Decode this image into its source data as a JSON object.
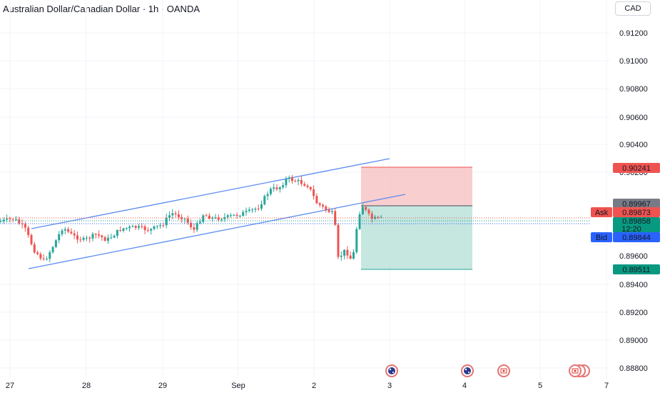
{
  "header": {
    "title": "Australian Dollar/Canadian Dollar · 1h · OANDA",
    "currency_button": "CAD"
  },
  "chart_data": {
    "type": "candlestick",
    "y_axis": {
      "ticks": [
        "0.91200",
        "0.91000",
        "0.90800",
        "0.90600",
        "0.90400",
        "0.90200",
        "0.89400",
        "0.89200",
        "0.89000",
        "0.88800"
      ]
    },
    "x_axis": {
      "ticks": [
        "27",
        "28",
        "29",
        "Sep",
        "2",
        "3",
        "4",
        "5",
        "7"
      ]
    },
    "price_labels": {
      "stop": "0.90241",
      "entry": "0.89967",
      "ask_label": "Ask",
      "ask": "0.89873",
      "last": "0.89858",
      "countdown": "12:20",
      "bid_label": "Bid",
      "bid": "0.89844",
      "target": "0.89511",
      "hidden_tick": "0.89600"
    },
    "colors": {
      "up": "#26a69a",
      "down": "#ef5350",
      "channel": "#5b8def",
      "ask": "#ef5350",
      "bid": "#2962ff",
      "last": "#089981"
    },
    "event_icons": [
      "australia-flag-icon",
      "australia-flag-icon",
      "canada-flag-icon",
      "canada-flag-icon"
    ]
  }
}
